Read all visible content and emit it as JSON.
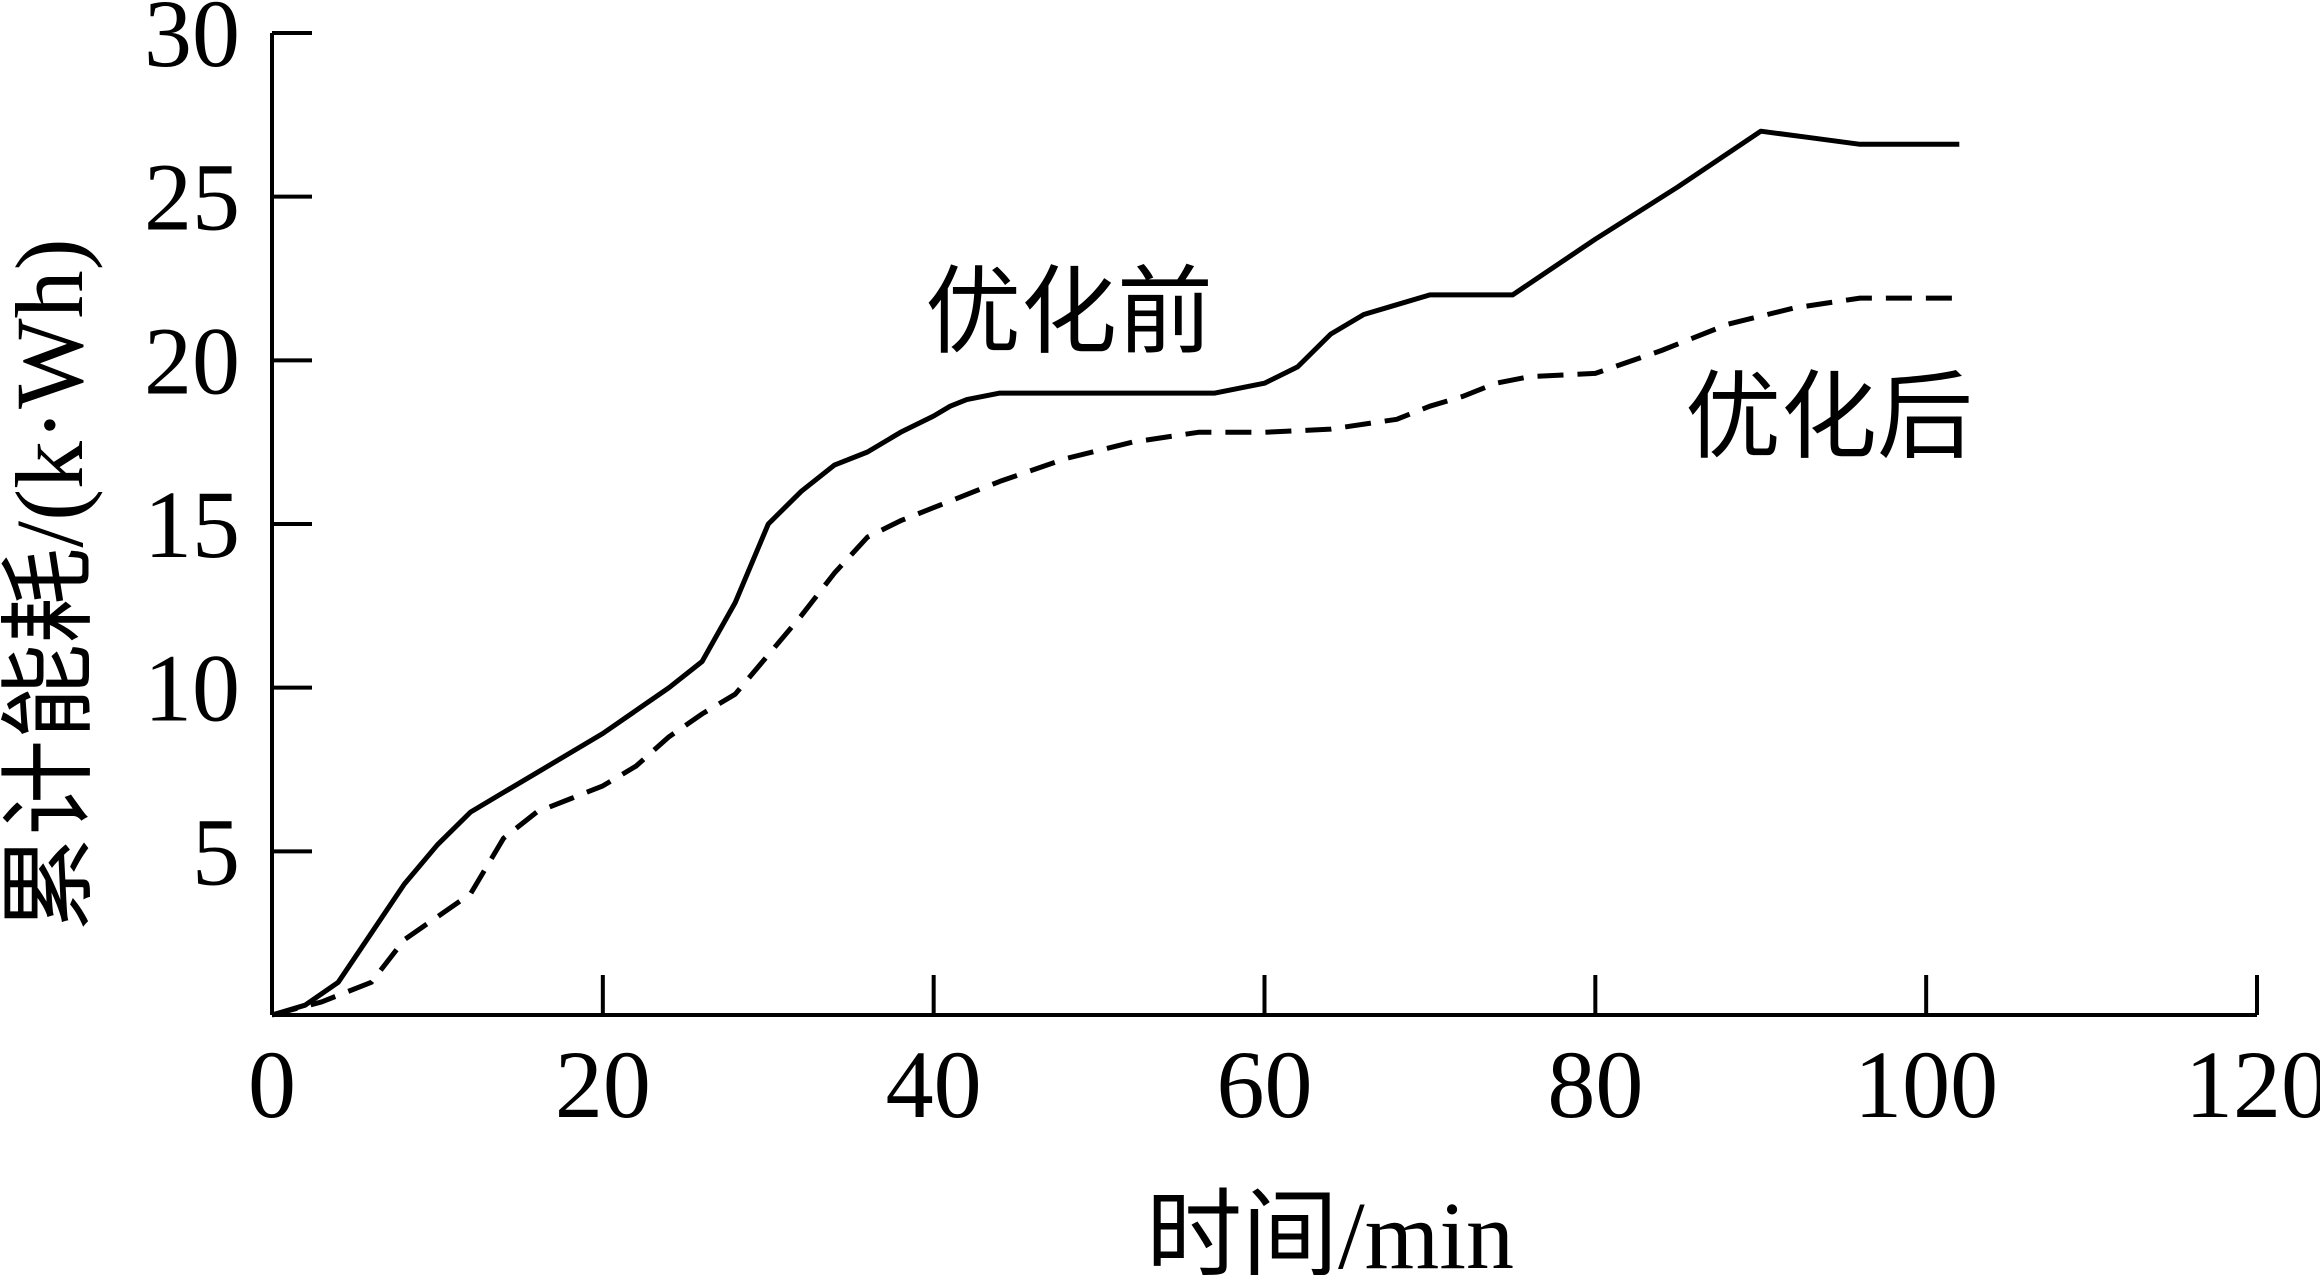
{
  "chart_data": {
    "type": "line",
    "xlabel": "时间/min",
    "ylabel": "累计能耗/(k·Wh)",
    "xlim": [
      0,
      120
    ],
    "ylim": [
      0,
      30
    ],
    "xticks": [
      0,
      20,
      40,
      60,
      80,
      100,
      120
    ],
    "yticks": [
      5,
      10,
      15,
      20,
      25,
      30
    ],
    "xtick_labels": [
      "0",
      "20",
      "40",
      "60",
      "80",
      "100",
      "120"
    ],
    "ytick_labels": [
      "5",
      "10",
      "15",
      "20",
      "25",
      "30"
    ],
    "grid": false,
    "series": [
      {
        "name": "优化前",
        "style": "solid",
        "x": [
          0,
          2,
          4,
          6,
          8,
          10,
          12,
          14,
          16,
          18,
          20,
          22,
          24,
          26,
          28,
          30,
          32,
          34,
          36,
          38,
          40,
          41,
          42,
          44,
          46,
          50,
          55,
          57,
          60,
          62,
          64,
          66,
          68,
          70,
          72,
          75,
          80,
          85,
          90,
          93,
          96,
          99,
          102
        ],
        "y": [
          0,
          0.3,
          1.0,
          2.5,
          4.0,
          5.2,
          6.2,
          6.8,
          7.4,
          8.0,
          8.6,
          9.3,
          10.0,
          10.8,
          12.6,
          15.0,
          16.0,
          16.8,
          17.2,
          17.8,
          18.3,
          18.6,
          18.8,
          19.0,
          19.0,
          19.0,
          19.0,
          19.0,
          19.3,
          19.8,
          20.8,
          21.4,
          21.7,
          22.0,
          22.0,
          22.0,
          23.7,
          25.3,
          27.0,
          26.8,
          26.6,
          26.6,
          26.6
        ]
      },
      {
        "name": "优化后",
        "style": "dashed",
        "x": [
          0,
          3,
          6,
          8,
          10,
          12,
          14,
          16,
          18,
          20,
          22,
          24,
          26,
          28,
          30,
          32,
          34,
          36,
          38,
          40,
          44,
          48,
          52,
          56,
          60,
          64,
          68,
          70,
          72,
          74,
          76,
          80,
          84,
          88,
          92,
          96,
          100,
          102
        ],
        "y": [
          0,
          0.4,
          1.0,
          2.3,
          3.0,
          3.7,
          5.4,
          6.2,
          6.6,
          7.0,
          7.6,
          8.5,
          9.2,
          9.8,
          11.0,
          12.2,
          13.5,
          14.6,
          15.1,
          15.5,
          16.3,
          17.0,
          17.5,
          17.8,
          17.8,
          17.9,
          18.2,
          18.6,
          18.9,
          19.3,
          19.5,
          19.6,
          20.3,
          21.1,
          21.6,
          21.9,
          21.9,
          21.9
        ]
      }
    ],
    "annotations": [
      {
        "text": "优化前",
        "series": "优化前"
      },
      {
        "text": "优化后",
        "series": "优化后"
      }
    ]
  }
}
